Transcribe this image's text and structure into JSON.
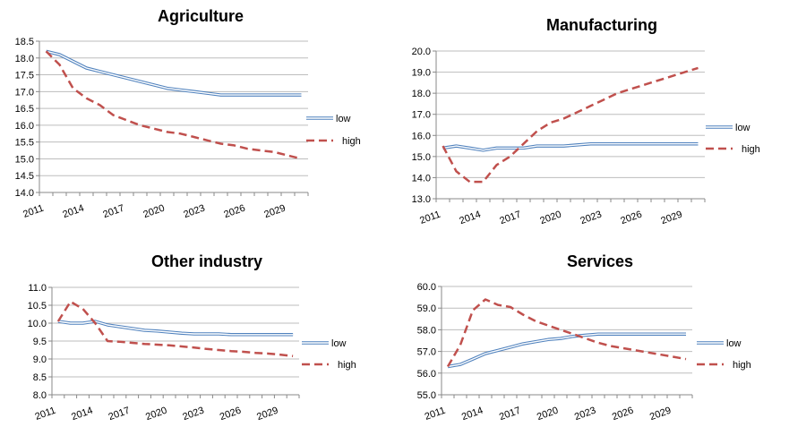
{
  "chart_data": [
    {
      "type": "line",
      "title": "Agriculture",
      "xlabel": "",
      "ylabel": "",
      "x": [
        2011,
        2012,
        2013,
        2014,
        2015,
        2016,
        2017,
        2018,
        2019,
        2020,
        2021,
        2022,
        2023,
        2024,
        2025,
        2026,
        2027,
        2028,
        2029,
        2030
      ],
      "xticks": [
        2011,
        2014,
        2017,
        2020,
        2023,
        2026,
        2029
      ],
      "ylim": [
        14.0,
        18.5
      ],
      "yticks": [
        "14.0",
        "14.5",
        "15.0",
        "15.5",
        "16.0",
        "16.5",
        "17.0",
        "17.5",
        "18.0",
        "18.5"
      ],
      "series": [
        {
          "name": "low",
          "values": [
            18.2,
            18.1,
            17.9,
            17.7,
            17.6,
            17.5,
            17.4,
            17.3,
            17.2,
            17.1,
            17.05,
            17.0,
            16.95,
            16.9,
            16.9,
            16.9,
            16.9,
            16.9,
            16.9,
            16.9
          ]
        },
        {
          "name": "high",
          "values": [
            18.2,
            17.8,
            17.1,
            16.8,
            16.6,
            16.3,
            16.15,
            16.0,
            15.9,
            15.8,
            15.75,
            15.65,
            15.55,
            15.45,
            15.4,
            15.3,
            15.25,
            15.2,
            15.1,
            15.0
          ]
        }
      ],
      "legend": "right",
      "grid": true
    },
    {
      "type": "line",
      "title": "Manufacturing",
      "xlabel": "",
      "ylabel": "",
      "x": [
        2011,
        2012,
        2013,
        2014,
        2015,
        2016,
        2017,
        2018,
        2019,
        2020,
        2021,
        2022,
        2023,
        2024,
        2025,
        2026,
        2027,
        2028,
        2029,
        2030
      ],
      "xticks": [
        2011,
        2014,
        2017,
        2020,
        2023,
        2026,
        2029
      ],
      "ylim": [
        13.0,
        20.0
      ],
      "yticks": [
        "13.0",
        "14.0",
        "15.0",
        "16.0",
        "17.0",
        "18.0",
        "19.0",
        "20.0"
      ],
      "series": [
        {
          "name": "low",
          "values": [
            15.4,
            15.5,
            15.4,
            15.3,
            15.4,
            15.4,
            15.4,
            15.5,
            15.5,
            15.5,
            15.55,
            15.6,
            15.6,
            15.6,
            15.6,
            15.6,
            15.6,
            15.6,
            15.6,
            15.6
          ]
        },
        {
          "name": "high",
          "values": [
            15.5,
            14.3,
            13.8,
            13.8,
            14.6,
            15.0,
            15.6,
            16.2,
            16.6,
            16.8,
            17.1,
            17.4,
            17.7,
            18.0,
            18.2,
            18.4,
            18.6,
            18.8,
            19.0,
            19.2
          ]
        }
      ],
      "legend": "right",
      "grid": true
    },
    {
      "type": "line",
      "title": "Other industry",
      "xlabel": "",
      "ylabel": "",
      "x": [
        2011,
        2012,
        2013,
        2014,
        2015,
        2016,
        2017,
        2018,
        2019,
        2020,
        2021,
        2022,
        2023,
        2024,
        2025,
        2026,
        2027,
        2028,
        2029,
        2030
      ],
      "xticks": [
        2011,
        2014,
        2017,
        2020,
        2023,
        2026,
        2029
      ],
      "ylim": [
        8.0,
        11.0
      ],
      "yticks": [
        "8.0",
        "8.5",
        "9.0",
        "9.5",
        "10.0",
        "10.5",
        "11.0"
      ],
      "series": [
        {
          "name": "low",
          "values": [
            10.05,
            10.0,
            10.0,
            10.05,
            9.95,
            9.9,
            9.85,
            9.8,
            9.78,
            9.75,
            9.72,
            9.7,
            9.7,
            9.7,
            9.68,
            9.68,
            9.68,
            9.68,
            9.68,
            9.68
          ]
        },
        {
          "name": "high",
          "values": [
            10.05,
            10.6,
            10.4,
            10.0,
            9.5,
            9.48,
            9.45,
            9.42,
            9.4,
            9.38,
            9.35,
            9.32,
            9.28,
            9.25,
            9.22,
            9.2,
            9.17,
            9.15,
            9.12,
            9.08
          ]
        }
      ],
      "legend": "right",
      "grid": true
    },
    {
      "type": "line",
      "title": "Services",
      "xlabel": "",
      "ylabel": "",
      "x": [
        2011,
        2012,
        2013,
        2014,
        2015,
        2016,
        2017,
        2018,
        2019,
        2020,
        2021,
        2022,
        2023,
        2024,
        2025,
        2026,
        2027,
        2028,
        2029,
        2030
      ],
      "xticks": [
        2011,
        2014,
        2017,
        2020,
        2023,
        2026,
        2029
      ],
      "ylim": [
        55.0,
        60.0
      ],
      "yticks": [
        "55.0",
        "56.0",
        "57.0",
        "58.0",
        "59.0",
        "60.0"
      ],
      "series": [
        {
          "name": "low",
          "values": [
            56.3,
            56.4,
            56.65,
            56.9,
            57.05,
            57.2,
            57.35,
            57.45,
            57.55,
            57.6,
            57.7,
            57.75,
            57.8,
            57.8,
            57.8,
            57.8,
            57.8,
            57.8,
            57.8,
            57.8
          ]
        },
        {
          "name": "high",
          "values": [
            56.3,
            57.3,
            58.9,
            59.4,
            59.15,
            59.05,
            58.7,
            58.4,
            58.2,
            58.0,
            57.8,
            57.6,
            57.4,
            57.25,
            57.15,
            57.05,
            56.95,
            56.85,
            56.75,
            56.65
          ]
        }
      ],
      "legend": "right",
      "grid": true
    }
  ]
}
